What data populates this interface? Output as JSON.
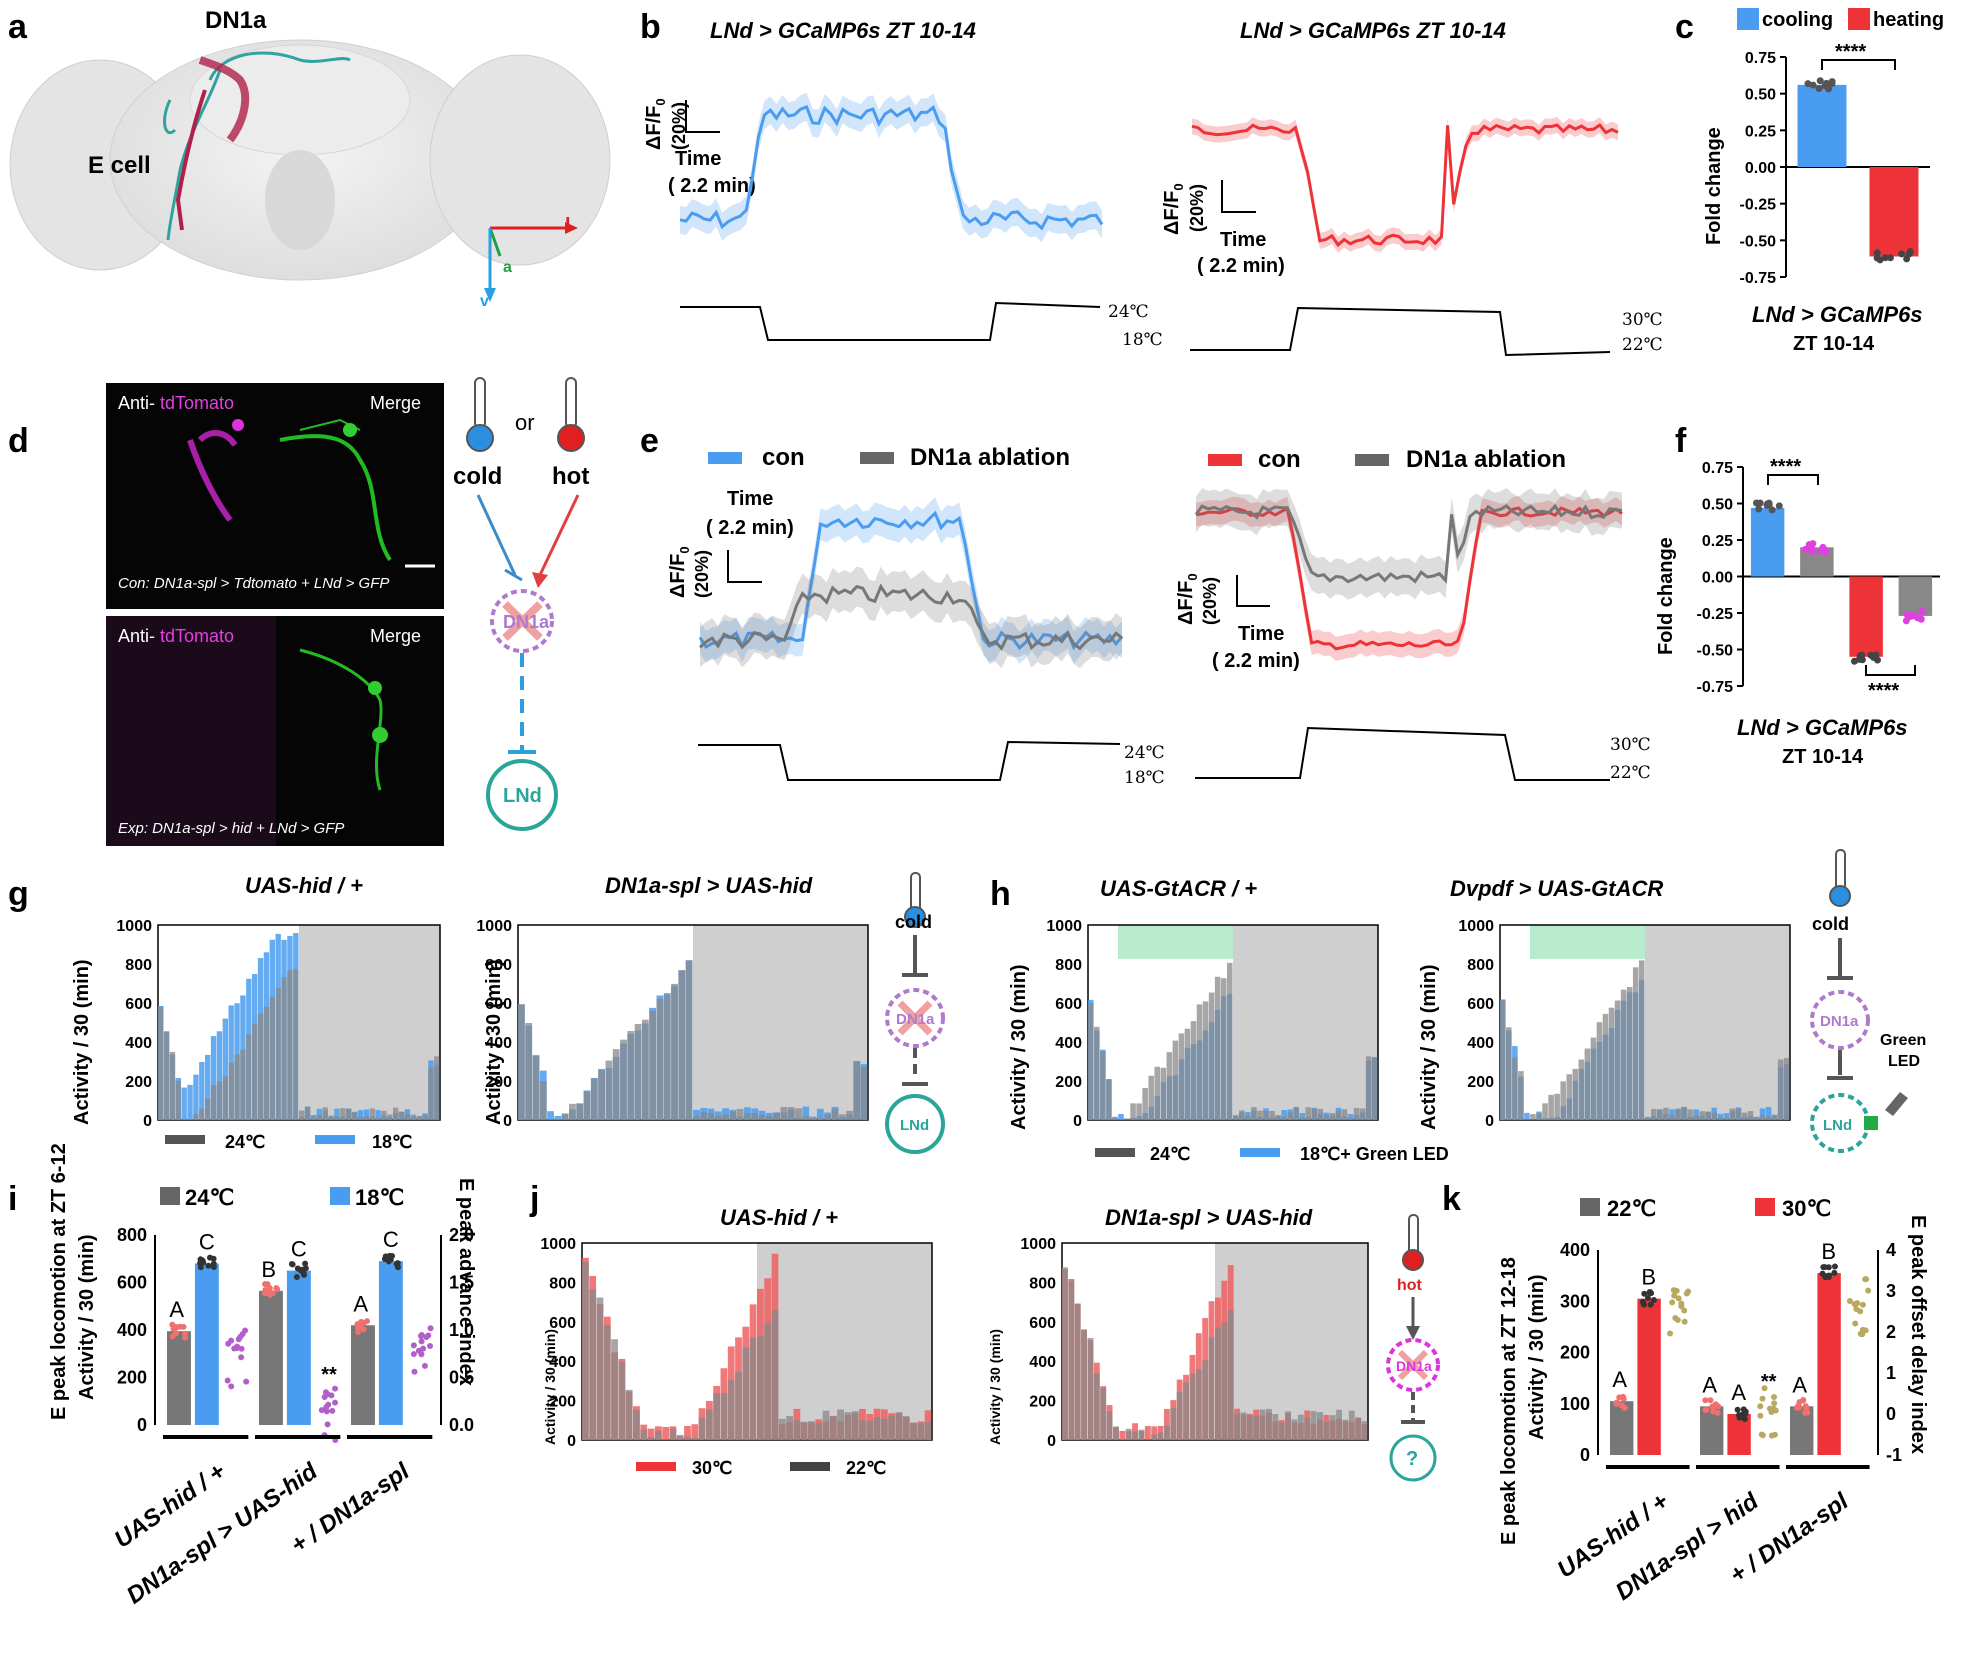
{
  "panels": {
    "a": "a",
    "b": "b",
    "c": "c",
    "d": "d",
    "e": "e",
    "f": "f",
    "g": "g",
    "h": "h",
    "i": "i",
    "j": "j",
    "k": "k"
  },
  "a": {
    "dn1a": "DN1a",
    "ecell": "E cell",
    "axis_l": "l",
    "axis_a": "a",
    "axis_v": "v"
  },
  "b": {
    "title_left": "LNd > GCaMP6s ZT 10-14",
    "title_right": "LNd > GCaMP6s ZT 10-14",
    "dff": "ΔF/F",
    "dff_sub": "0",
    "pct": "(20%)",
    "time": "Time",
    "time_val": "( 2.2 min)",
    "temp_left_hi": "24℃",
    "temp_left_lo": "18℃",
    "temp_right_hi": "30℃",
    "temp_right_lo": "22℃"
  },
  "c": {
    "legend_cool": "cooling",
    "legend_heat": "heating",
    "ylabel": "Fold change",
    "sig": "****",
    "caption1": "LNd > GCaMP6s",
    "caption2": "ZT 10-14",
    "yticks": [
      "0.75",
      "0.50",
      "0.25",
      "0.00",
      "-0.25",
      "-0.50",
      "-0.75"
    ],
    "colors": {
      "cool": "#4a9cf0",
      "heat": "#ee3338"
    }
  },
  "d": {
    "anti": "Anti-",
    "tdtomato": "tdTomato",
    "merge": "Merge",
    "con_text": "Con: DN1a-spl > Tdtomato + LNd > GFP",
    "exp_text": "Exp: DN1a-spl > hid + LNd > GFP",
    "or": "or",
    "cold": "cold",
    "hot": "hot",
    "dn1a": "DN1a",
    "lnd": "LNd"
  },
  "e": {
    "con": "con",
    "ablation": "DN1a ablation",
    "time": "Time",
    "time_val": "( 2.2 min)",
    "dff": "ΔF/F",
    "dff_sub": "0",
    "pct": "(20%)",
    "temp_left_hi": "24℃",
    "temp_left_lo": "18℃",
    "temp_right_hi": "30℃",
    "temp_right_lo": "22℃"
  },
  "f": {
    "ylabel": "Fold change",
    "sig1": "****",
    "sig2": "****",
    "caption1": "LNd > GCaMP6s",
    "caption2": "ZT 10-14",
    "yticks": [
      "0.75",
      "0.50",
      "0.25",
      "0.00",
      "-0.25",
      "-0.50",
      "-0.75"
    ]
  },
  "g": {
    "title_left": "UAS-hid / +",
    "title_right": "DN1a-spl > UAS-hid",
    "ylabel": "Activity / 30 (min)",
    "legend_a": "24℃",
    "legend_b": "18℃",
    "cold": "cold",
    "dn1a": "DN1a",
    "lnd": "LNd",
    "yticks": [
      "1000",
      "800",
      "600",
      "400",
      "200",
      "0"
    ]
  },
  "h": {
    "title_left": "UAS-GtACR / +",
    "title_right": "Dvpdf > UAS-GtACR",
    "ylabel": "Activity / 30 (min)",
    "legend_a": "24℃",
    "legend_b": "18℃+ Green LED",
    "cold": "cold",
    "dn1a": "DN1a",
    "lnd": "LNd",
    "green": "Green",
    "led": "LED",
    "yticks": [
      "1000",
      "800",
      "600",
      "400",
      "200",
      "0"
    ]
  },
  "i": {
    "legend_a": "24℃",
    "legend_b": "18℃",
    "ylabel1": "E peak locomotion at ZT 6-12",
    "ylabel2": "Activity / 30 (min)",
    "ylabel_right": "E peak advance index",
    "groups": [
      "UAS-hid / +",
      "DN1a-spl > UAS-hid",
      "+ / DN1a-spl"
    ],
    "letters": [
      "A",
      "C",
      "B",
      "C",
      "A",
      "C"
    ],
    "sig": "**",
    "yticks": [
      "800",
      "600",
      "400",
      "200",
      "0"
    ],
    "yticks_right": [
      "2.0",
      "1.5",
      "1.0",
      "0.5",
      "0.0"
    ]
  },
  "j": {
    "title_left": "UAS-hid / +",
    "title_right": "DN1a-spl > UAS-hid",
    "ylabel": "Activity / 30 (min)",
    "legend_a": "30℃",
    "legend_b": "22℃",
    "hot": "hot",
    "dn1a": "DN1a",
    "q": "?",
    "yticks": [
      "1000",
      "800",
      "600",
      "400",
      "200",
      "0"
    ]
  },
  "k": {
    "legend_a": "22℃",
    "legend_b": "30℃",
    "ylabel1": "E peak locomotion at ZT 12-18",
    "ylabel2": "Activity / 30 (min)",
    "ylabel_right": "E peak offset delay index",
    "groups": [
      "UAS-hid / +",
      "DN1a-spl > hid",
      "+ / DN1a-spl"
    ],
    "letters": [
      "A",
      "B",
      "A",
      "A",
      "A",
      "B"
    ],
    "sig": "**",
    "yticks": [
      "400",
      "300",
      "200",
      "100",
      "0"
    ],
    "yticks_right": [
      "4",
      "3",
      "2",
      "1",
      "0",
      "-1"
    ]
  },
  "chart_data": [
    {
      "panel": "c",
      "type": "bar",
      "categories": [
        "cooling",
        "heating"
      ],
      "values": [
        0.56,
        -0.61
      ],
      "ylim": [
        -0.75,
        0.75
      ],
      "ylabel": "Fold change"
    },
    {
      "panel": "f",
      "type": "bar",
      "categories": [
        "con cooling",
        "ablation cooling",
        "con heating",
        "ablation heating"
      ],
      "values": [
        0.47,
        0.2,
        -0.55,
        -0.27
      ],
      "ylim": [
        -0.75,
        0.75
      ],
      "ylabel": "Fold change"
    },
    {
      "panel": "i",
      "type": "bar",
      "categories": [
        "UAS-hid / +",
        "DN1a-spl > UAS-hid",
        "+ / DN1a-spl"
      ],
      "series": [
        {
          "name": "24℃",
          "values": [
            395,
            565,
            420
          ]
        },
        {
          "name": "18℃",
          "values": [
            680,
            650,
            690
          ]
        }
      ],
      "index_series": [
        0.68,
        0.15,
        0.8
      ],
      "ylim": [
        0,
        800
      ],
      "y2lim": [
        0,
        2.0
      ]
    },
    {
      "panel": "k",
      "type": "bar",
      "categories": [
        "UAS-hid / +",
        "DN1a-spl > hid",
        "+ / DN1a-spl"
      ],
      "series": [
        {
          "name": "22℃",
          "values": [
            105,
            95,
            95
          ]
        },
        {
          "name": "30℃",
          "values": [
            305,
            80,
            355
          ]
        }
      ],
      "index_series": [
        2.3,
        -0.1,
        2.6
      ],
      "ylim": [
        0,
        400
      ],
      "y2lim": [
        -1,
        4
      ]
    }
  ]
}
